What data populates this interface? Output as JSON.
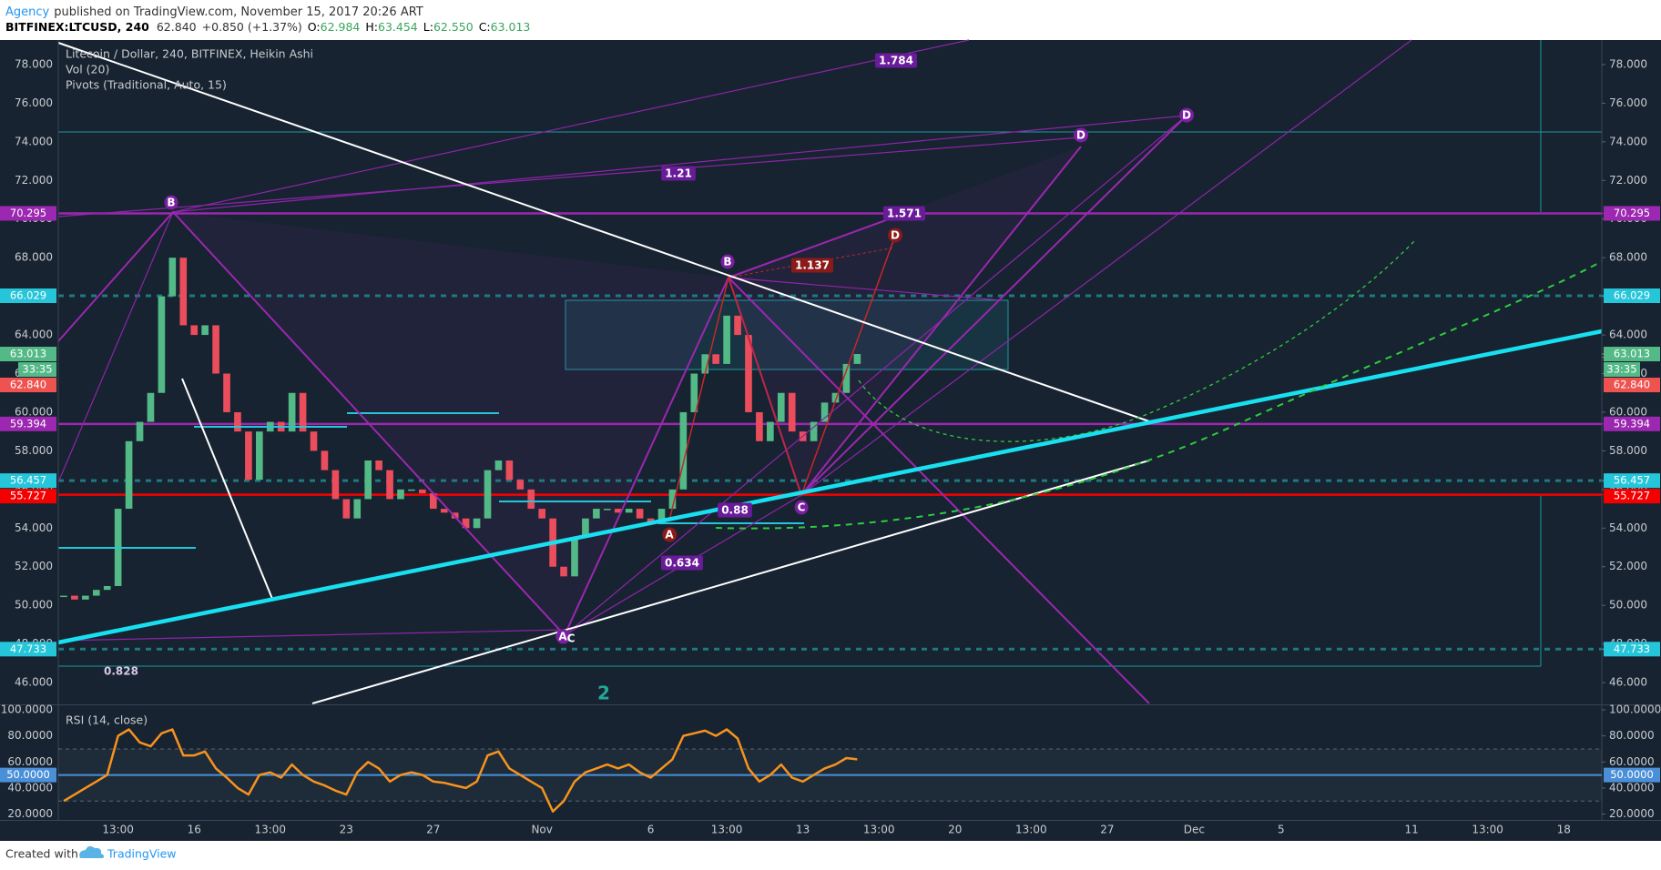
{
  "header": {
    "author": "Agency",
    "published": "published on TradingView.com, November 15, 2017 20:26 ART",
    "symbol": "BITFINEX:LTCUSD, 240",
    "last": "62.840",
    "change": "+0.850 (+1.37%)",
    "ohlc": [
      {
        "key": "O:",
        "value": "62.984"
      },
      {
        "key": "H:",
        "value": "63.454"
      },
      {
        "key": "L:",
        "value": "62.550"
      },
      {
        "key": "C:",
        "value": "63.013"
      }
    ]
  },
  "chart_data": {
    "type": "candlestick",
    "title": "Litecoin / Dollar, 240, BITFINEX, Heikin Ashi",
    "legend": [
      "Vol (20)",
      "Pivots (Traditional, Auto, 15)"
    ],
    "up_color": "#53b987",
    "down_color": "#eb4d5c",
    "categories": [
      null,
      null,
      null,
      null,
      null,
      "13:00",
      null,
      null,
      null,
      null,
      null,
      null,
      "16",
      null,
      null,
      null,
      null,
      null,
      null,
      "13:00",
      null,
      null,
      null,
      null,
      null,
      null,
      "23",
      null,
      null,
      null,
      null,
      null,
      null,
      null,
      "27",
      null,
      null,
      null,
      null,
      null,
      null,
      null,
      null,
      null,
      "Nov",
      null,
      null,
      null,
      null,
      null,
      null,
      null,
      null,
      null,
      "6",
      null,
      null,
      null,
      null,
      null,
      null,
      "13:00",
      null,
      null,
      null,
      null,
      null,
      null,
      "13",
      null,
      null,
      null,
      null,
      null,
      null,
      "13:00",
      null,
      null,
      null,
      null,
      null,
      null,
      "20",
      null,
      null,
      null,
      null,
      null,
      null,
      "13:00",
      null,
      null,
      null,
      null,
      null,
      null,
      "27",
      null,
      null,
      null,
      null,
      null,
      null,
      null,
      "Dec",
      null,
      null,
      null,
      null,
      null,
      null,
      null,
      "5",
      null,
      null,
      null,
      null,
      null,
      null,
      null,
      null,
      null,
      null,
      null,
      "11",
      null,
      null,
      null,
      null,
      null,
      null,
      "13:00",
      null,
      null,
      null,
      null,
      null,
      null,
      "18",
      null,
      null,
      null
    ],
    "values": [
      50.5,
      50.3,
      50.5,
      50.8,
      51,
      55,
      58.5,
      59.5,
      61,
      66,
      68,
      64.5,
      64,
      64.5,
      62,
      60,
      59,
      56.5,
      59,
      59.5,
      59,
      61,
      59,
      58,
      57,
      55.5,
      54.5,
      55.5,
      57.5,
      57,
      55.5,
      56,
      56,
      55.8,
      55,
      54.8,
      54.5,
      54,
      54.5,
      57,
      57.5,
      56.5,
      56,
      55,
      54.5,
      52,
      51.5,
      53.5,
      54.5,
      55,
      55,
      54.8,
      55,
      54.5,
      54.2,
      55,
      56,
      60,
      62,
      63,
      62.5,
      65,
      64,
      60,
      58.5,
      59.5,
      61,
      59,
      58.5,
      59.5,
      60.5,
      61,
      62.5,
      63.013,
      null,
      null,
      null,
      null,
      null,
      null,
      null,
      null,
      null,
      null,
      null,
      null,
      null,
      null,
      null,
      null,
      null,
      null,
      null,
      null,
      null,
      null,
      null,
      null,
      null,
      null,
      null,
      null,
      null,
      null,
      null,
      null,
      null,
      null,
      null,
      null,
      null,
      null,
      null,
      null,
      null,
      null,
      null,
      null,
      null,
      null,
      null,
      null,
      null,
      null,
      null,
      null,
      null,
      null,
      null,
      null,
      null,
      null,
      null,
      null,
      null,
      null,
      null,
      null,
      null,
      null,
      null,
      null
    ],
    "ylim": [
      44.92,
      79.27
    ],
    "yticks": [
      {
        "value": 46,
        "label": "46.000"
      },
      {
        "value": 48,
        "label": "48.000"
      },
      {
        "value": 50,
        "label": "50.000"
      },
      {
        "value": 52,
        "label": "52.000"
      },
      {
        "value": 54,
        "label": "54.000"
      },
      {
        "value": 56,
        "label": "56.000"
      },
      {
        "value": 58,
        "label": "58.000"
      },
      {
        "value": 60,
        "label": "60.000"
      },
      {
        "value": 62,
        "label": "62.000"
      },
      {
        "value": 64,
        "label": "64.000"
      },
      {
        "value": 66,
        "label": "66.000"
      },
      {
        "value": 68,
        "label": "68.000"
      },
      {
        "value": 70,
        "label": "70.000"
      },
      {
        "value": 72,
        "label": "72.000"
      },
      {
        "value": 74,
        "label": "74.000"
      },
      {
        "value": 76,
        "label": "76.000"
      },
      {
        "value": 78,
        "label": "78.000"
      }
    ],
    "price_lines": [
      {
        "value": 70.295,
        "label": "70.295",
        "color": "#9c27b0",
        "style": "solid"
      },
      {
        "value": 66.029,
        "label": "66.029",
        "color": "#26c6da",
        "style": "dashed"
      },
      {
        "value": 63.013,
        "label": "63.013",
        "color": "#53b987",
        "style": "none",
        "countdown": "33:35"
      },
      {
        "value": 62.84,
        "label": "62.840",
        "color": "#ef5350",
        "style": "none"
      },
      {
        "value": 59.394,
        "label": "59.394",
        "color": "#9c27b0",
        "style": "solid"
      },
      {
        "value": 56.457,
        "label": "56.457",
        "color": "#26c6da",
        "style": "dashed"
      },
      {
        "value": 55.727,
        "label": "55.727",
        "color": "#f50000",
        "style": "solid"
      },
      {
        "value": 47.733,
        "label": "47.733",
        "color": "#26c6da",
        "style": "dashed"
      }
    ],
    "annotations": {
      "ratios": [
        "1.784",
        "1.21",
        "1.571",
        "1.137",
        "0.88",
        "0.634",
        "0.828"
      ],
      "wave": "2",
      "points": [
        "B",
        "B",
        "D",
        "D",
        "D",
        "C",
        "A",
        "A",
        "C"
      ]
    },
    "rsi": {
      "type": "line",
      "title": "RSI (14, close)",
      "color": "#f7931e",
      "values": [
        30,
        35,
        40,
        45,
        50,
        80,
        85,
        75,
        72,
        82,
        85,
        65,
        65,
        68,
        55,
        48,
        40,
        35,
        50,
        52,
        48,
        58,
        50,
        45,
        42,
        38,
        35,
        52,
        60,
        55,
        45,
        50,
        52,
        50,
        45,
        44,
        42,
        40,
        45,
        65,
        68,
        55,
        50,
        45,
        40,
        22,
        30,
        45,
        52,
        55,
        58,
        55,
        58,
        52,
        48,
        55,
        62,
        80,
        82,
        84,
        80,
        85,
        78,
        55,
        45,
        50,
        58,
        48,
        45,
        50,
        55,
        58,
        63,
        62,
        null,
        null,
        null,
        null,
        null,
        null,
        null,
        null,
        null,
        null,
        null,
        null,
        null,
        null,
        null,
        null,
        null,
        null,
        null,
        null,
        null,
        null,
        null,
        null,
        null,
        null,
        null,
        null,
        null,
        null,
        null,
        null,
        null,
        null,
        null,
        null,
        null,
        null,
        null,
        null,
        null,
        null,
        null,
        null,
        null,
        null,
        null,
        null,
        null,
        null,
        null,
        null,
        null,
        null,
        null,
        null,
        null,
        null,
        null,
        null,
        null,
        null,
        null,
        null,
        null,
        null,
        null,
        null
      ],
      "ylim": [
        15.5,
        102.8
      ],
      "yticks": [
        {
          "value": 20,
          "label": "20.0000"
        },
        {
          "value": 40,
          "label": "40.0000"
        },
        {
          "value": 60,
          "label": "60.0000"
        },
        {
          "value": 80,
          "label": "80.0000"
        },
        {
          "value": 100,
          "label": "100.0000"
        }
      ],
      "bands": [
        70,
        30
      ],
      "midline": {
        "value": 50,
        "label": "50.0000",
        "color": "#4a90d9"
      }
    }
  },
  "footer": {
    "created": "Created with",
    "brand": "TradingView"
  }
}
